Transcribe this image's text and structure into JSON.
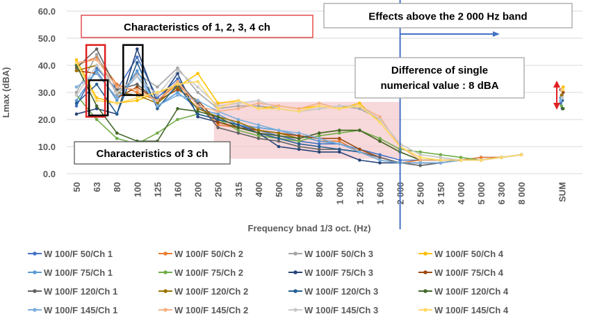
{
  "chart_data": {
    "type": "line",
    "xlabel": "Frequency bnad 1/3 oct. (Hz)",
    "ylabel": "Lmax (dBA)",
    "ylim": [
      0,
      60
    ],
    "yticks": [
      "0.0",
      "10.0",
      "20.0",
      "30.0",
      "40.0",
      "50.0",
      "60.0"
    ],
    "categories": [
      "50",
      "63",
      "80",
      "100",
      "125",
      "160",
      "200",
      "250",
      "315",
      "400",
      "500",
      "630",
      "800",
      "1 000",
      "1 250",
      "1 600",
      "2 000",
      "2 500",
      "3 150",
      "4 000",
      "5 000",
      "6 300",
      "8 000",
      "",
      "SUM"
    ],
    "grid": true,
    "legend_position": "bottom",
    "series": [
      {
        "name": "W 100/F 50/Ch 1",
        "color": "#4472c4",
        "marker": "diamond",
        "values": [
          25,
          39,
          31,
          43,
          28,
          35,
          25,
          20,
          18,
          16,
          14,
          12,
          11,
          11,
          9,
          7,
          5,
          5,
          5,
          5,
          6,
          6,
          7,
          null,
          26
        ]
      },
      {
        "name": "W 100/F 50/Ch 2",
        "color": "#ed7d31",
        "marker": "diamond",
        "values": [
          40,
          43,
          33,
          30,
          27,
          33,
          26,
          18,
          17,
          16,
          15,
          14,
          12,
          12,
          8,
          6,
          4,
          5,
          5,
          5,
          6,
          6,
          7,
          null,
          31
        ]
      },
      {
        "name": "W 100/F 50/Ch 3",
        "color": "#a5a5a5",
        "marker": "diamond",
        "values": [
          30,
          44,
          29,
          37,
          32,
          39,
          30,
          24,
          25,
          25,
          24,
          23,
          24,
          25,
          24,
          20,
          11,
          7,
          6,
          5,
          5,
          6,
          7,
          null,
          29
        ]
      },
      {
        "name": "W 100/F 50/Ch 4",
        "color": "#ffc000",
        "marker": "diamond",
        "values": [
          42,
          28,
          26,
          27,
          30,
          32,
          37,
          26,
          27,
          24,
          25,
          24,
          25,
          24,
          26,
          19,
          10,
          6,
          5,
          5,
          5,
          6,
          7,
          null,
          32
        ]
      },
      {
        "name": "W 100/F 75/Ch 1",
        "color": "#5b9bd5",
        "marker": "diamond",
        "values": [
          27,
          38,
          27,
          38,
          25,
          30,
          24,
          22,
          18,
          17,
          16,
          14,
          12,
          11,
          9,
          6,
          4,
          4,
          4,
          5,
          5,
          6,
          7,
          null,
          28
        ]
      },
      {
        "name": "W 100/F 75/Ch 2",
        "color": "#70ad47",
        "marker": "diamond",
        "values": [
          29,
          20,
          13,
          11,
          15,
          20,
          22,
          20,
          16,
          14,
          13,
          12,
          14,
          15,
          16,
          13,
          9,
          8,
          7,
          6,
          5,
          6,
          7,
          null,
          25
        ]
      },
      {
        "name": "W 100/F 75/Ch 3",
        "color": "#264478",
        "marker": "diamond",
        "values": [
          22,
          24,
          22,
          46,
          26,
          37,
          21,
          19,
          17,
          15,
          10,
          9,
          8,
          8,
          5,
          4,
          4,
          4,
          4,
          5,
          5,
          6,
          7,
          null,
          24
        ]
      },
      {
        "name": "W 100/F 75/Ch 4",
        "color": "#9e480e",
        "marker": "diamond",
        "values": [
          38,
          37,
          28,
          32,
          27,
          31,
          27,
          19,
          17,
          16,
          15,
          14,
          13,
          13,
          9,
          6,
          4,
          4,
          4,
          5,
          5,
          6,
          7,
          null,
          30
        ]
      },
      {
        "name": "W 100/F 120/Ch 1",
        "color": "#636363",
        "marker": "diamond",
        "values": [
          39,
          46,
          31,
          33,
          27,
          34,
          26,
          17,
          15,
          13,
          12,
          10,
          9,
          9,
          8,
          6,
          4,
          3,
          4,
          5,
          5,
          6,
          7,
          null,
          31
        ]
      },
      {
        "name": "W 100/F 120/Ch 2",
        "color": "#997300",
        "marker": "diamond",
        "values": [
          38,
          40,
          30,
          29,
          26,
          32,
          24,
          21,
          19,
          16,
          15,
          13,
          15,
          16,
          16,
          12,
          8,
          5,
          5,
          5,
          5,
          6,
          7,
          null,
          29
        ]
      },
      {
        "name": "W 100/F 120/Ch 3",
        "color": "#255e91",
        "marker": "diamond",
        "values": [
          26,
          33,
          22,
          41,
          24,
          33,
          22,
          20,
          18,
          15,
          13,
          11,
          10,
          9,
          8,
          5,
          4,
          4,
          4,
          5,
          5,
          6,
          7,
          null,
          27
        ]
      },
      {
        "name": "W 100/F 120/Ch 4",
        "color": "#43682b",
        "marker": "diamond",
        "values": [
          40,
          25,
          15,
          12,
          12,
          24,
          23,
          21,
          17,
          15,
          14,
          13,
          15,
          16,
          16,
          12,
          8,
          5,
          5,
          5,
          5,
          6,
          7,
          null,
          24
        ]
      },
      {
        "name": "W 100/F 145/Ch 1",
        "color": "#7cafdd",
        "marker": "diamond",
        "values": [
          32,
          37,
          28,
          36,
          25,
          29,
          27,
          23,
          20,
          18,
          16,
          15,
          13,
          11,
          8,
          5,
          4,
          4,
          4,
          5,
          5,
          6,
          7,
          null,
          27
        ]
      },
      {
        "name": "W 100/F 145/Ch 2",
        "color": "#f4b183",
        "marker": "diamond",
        "values": [
          41,
          42,
          32,
          31,
          27,
          34,
          25,
          23,
          24,
          26,
          25,
          24,
          26,
          24,
          25,
          21,
          10,
          5,
          5,
          5,
          5,
          6,
          7,
          null,
          31
        ]
      },
      {
        "name": "W 100/F 145/Ch 3",
        "color": "#c9c9c9",
        "marker": "diamond",
        "values": [
          29,
          40,
          30,
          36,
          29,
          38,
          32,
          25,
          26,
          27,
          24,
          23,
          24,
          25,
          25,
          20,
          11,
          7,
          6,
          5,
          5,
          6,
          7,
          null,
          28
        ]
      },
      {
        "name": "W 100/F 145/Ch 4",
        "color": "#ffd966",
        "marker": "diamond",
        "values": [
          41,
          27,
          26,
          28,
          30,
          33,
          34,
          24,
          27,
          24,
          24,
          23,
          25,
          24,
          25,
          19,
          10,
          6,
          5,
          5,
          5,
          6,
          7,
          null,
          31
        ]
      }
    ],
    "annotations": [
      {
        "id": "anno-1234",
        "text": "Characteristics of 1, 2, 3, 4 ch",
        "border": "#e03030"
      },
      {
        "id": "anno-3ch",
        "text": "Characteristics of 3 ch",
        "border": "#595959"
      },
      {
        "id": "anno-effects",
        "text": "Effects above the 2 000 Hz band",
        "border": "#a6a6a6"
      },
      {
        "id": "anno-diff",
        "lines": [
          "Difference of single",
          "numerical value : 8 dBA"
        ],
        "border": "#a6a6a6"
      }
    ]
  }
}
